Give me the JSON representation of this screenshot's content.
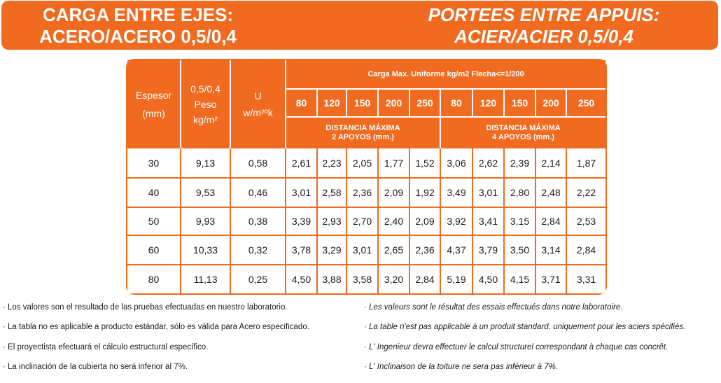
{
  "header": {
    "es_line1": "CARGA ENTRE EJES:",
    "es_line2": "ACERO/ACERO 0,5/0,4",
    "fr_line1": "PORTEES ENTRE APPUIS:",
    "fr_line2": "ACIER/ACIER 0,5/0,4",
    "brand_color": "#f06a1f"
  },
  "table": {
    "col_espesor": "Espesor",
    "col_espesor_unit": "(mm)",
    "col_peso_a": "0,5/0,4",
    "col_peso_b": "Peso",
    "col_peso_c": "kg/m²",
    "col_u": "U",
    "col_u_unit": "w/m²ºk",
    "group_title": "Carga Max. Uniforme kg/m2 Flecha<=1/200",
    "loads": [
      "80",
      "120",
      "150",
      "200",
      "250",
      "80",
      "120",
      "150",
      "200",
      "250"
    ],
    "dist2_a": "DISTANCIA MÁXIMA",
    "dist2_b": "2 APOYOS (mm.)",
    "dist4_a": "DISTANCIA MÁXIMA",
    "dist4_b": "4 APOYOS (mm.)",
    "rows": [
      {
        "espesor": "30",
        "peso": "9,13",
        "u": "0,58",
        "vals": [
          "2,61",
          "2,23",
          "2,05",
          "1,77",
          "1,52",
          "3,06",
          "2,62",
          "2,39",
          "2,14",
          "1,87"
        ]
      },
      {
        "espesor": "40",
        "peso": "9,53",
        "u": "0,46",
        "vals": [
          "3,01",
          "2,58",
          "2,36",
          "2,09",
          "1,92",
          "3,49",
          "3,01",
          "2,80",
          "2,48",
          "2,22"
        ]
      },
      {
        "espesor": "50",
        "peso": "9,93",
        "u": "0,38",
        "vals": [
          "3,39",
          "2,93",
          "2,70",
          "2,40",
          "2,09",
          "3,92",
          "3,41",
          "3,15",
          "2,84",
          "2,53"
        ]
      },
      {
        "espesor": "60",
        "peso": "10,33",
        "u": "0,32",
        "vals": [
          "3,78",
          "3,29",
          "3,01",
          "2,65",
          "2,36",
          "4,37",
          "3,79",
          "3,50",
          "3,14",
          "2,84"
        ]
      },
      {
        "espesor": "80",
        "peso": "11,13",
        "u": "0,25",
        "vals": [
          "4,50",
          "3,88",
          "3,58",
          "3,20",
          "2,84",
          "5,19",
          "4,50",
          "4,15",
          "3,71",
          "3,31"
        ]
      }
    ]
  },
  "notes": {
    "es": [
      "· Los valores son el resultado de las pruebas efectuadas en nuestro laboratorio.",
      "· La tabla no es aplicable a producto estándar, sólo es válida para Acero especificado.",
      "· El proyectista efectuará el cálculo estructural específico.",
      "· La inclinación de la cubierta no será inferior al 7%."
    ],
    "fr": [
      "· Les valeurs sont le résultat des essais effectués dans notre laboratoire.",
      "· La table n'est pas applicable à un produit standard, uniquement pour les aciers spécifiés.",
      "· L' Ingenieur devra effectuer le calcul structurel correspondant à chaque cas concrêt.",
      "· L' Inclinaison de la toiture ne sera pas inférieur à 7%."
    ]
  }
}
